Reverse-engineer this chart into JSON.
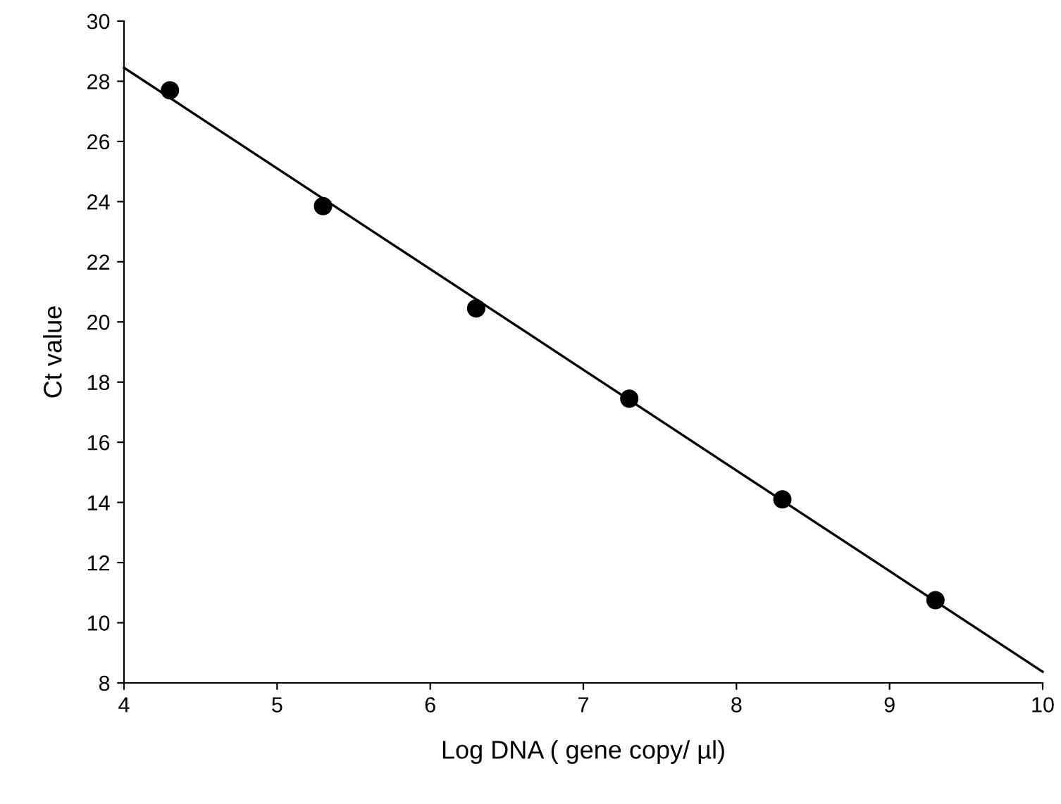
{
  "chart_data": {
    "type": "scatter",
    "xlabel": "Log DNA ( gene copy/ µl)",
    "ylabel": "Ct value",
    "series": [
      {
        "color": "#000000",
        "x": [
          4.3,
          5.3,
          6.3,
          7.3,
          8.3,
          9.3
        ],
        "values": [
          27.7,
          23.85,
          20.45,
          17.45,
          14.1,
          10.75
        ],
        "marker": "circle"
      },
      {
        "type": "line",
        "color": "#000000",
        "x": [
          4,
          10
        ],
        "values": [
          28.45,
          8.37
        ],
        "marker": "none",
        "line_style": "solid"
      }
    ],
    "xlim": [
      4,
      10
    ],
    "xticks": [
      4,
      5,
      6,
      7,
      8,
      9,
      10
    ],
    "ylim": [
      8,
      30
    ],
    "yticks": [
      8,
      10,
      12,
      14,
      16,
      18,
      20,
      22,
      24,
      26,
      28,
      30
    ],
    "grid": false,
    "legend": false
  }
}
